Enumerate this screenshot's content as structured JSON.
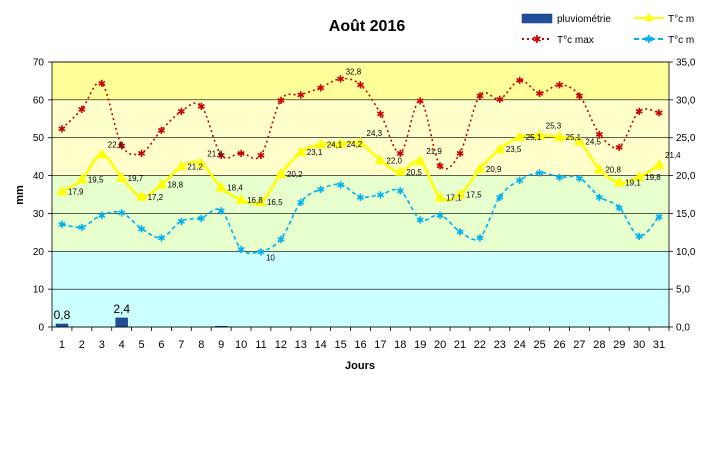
{
  "chart_data": {
    "type": "line",
    "title": "Août 2016",
    "xlabel": "Jours",
    "ylabel": "mm",
    "ylim_left": [
      0,
      70
    ],
    "ylim_right": [
      0,
      35
    ],
    "left_ticks": [
      "0",
      "10",
      "20",
      "30",
      "40",
      "50",
      "60",
      "70"
    ],
    "right_ticks": [
      "0,0",
      "5,0",
      "10,0",
      "15,0",
      "20,0",
      "25,0",
      "30,0",
      "35,0"
    ],
    "categories": [
      "1",
      "2",
      "3",
      "4",
      "5",
      "6",
      "7",
      "8",
      "9",
      "10",
      "11",
      "12",
      "13",
      "14",
      "15",
      "16",
      "17",
      "18",
      "19",
      "20",
      "21",
      "22",
      "23",
      "24",
      "25",
      "26",
      "27",
      "28",
      "29",
      "30",
      "31"
    ],
    "background_bands_right_axis": [
      {
        "from": 0,
        "to": 10,
        "color": "#ccffff"
      },
      {
        "from": 10,
        "to": 20,
        "color": "#e6ffcc"
      },
      {
        "from": 20,
        "to": 30,
        "color": "#ffffcc"
      },
      {
        "from": 30,
        "to": 35,
        "color": "#ffff99"
      }
    ],
    "grid": true,
    "legend_placement": "top-right",
    "series": [
      {
        "name": "pluviométrie",
        "type": "bar",
        "axis": "left",
        "color": "#1f4e9a",
        "values": [
          0.8,
          0,
          0,
          2.4,
          0,
          0,
          0,
          0,
          0.2,
          0,
          0,
          0,
          0,
          0,
          0,
          0,
          0,
          0,
          0,
          0,
          0,
          0,
          0,
          0,
          0,
          0,
          0,
          0,
          0,
          0,
          0
        ],
        "labels": {
          "0": "0,8",
          "3": "2,4"
        }
      },
      {
        "name": "T°c m",
        "type": "line",
        "axis": "right",
        "color": "#ffff00",
        "marker": "triangle",
        "values": [
          17.9,
          19.5,
          22.8,
          19.7,
          17.2,
          18.8,
          21.2,
          21.6,
          18.4,
          16.8,
          16.5,
          20.2,
          23.1,
          24.1,
          24.2,
          24.3,
          22.0,
          20.5,
          21.9,
          17.1,
          17.5,
          20.9,
          23.5,
          25.1,
          25.3,
          25.1,
          24.5,
          20.8,
          19.1,
          19.8,
          21.4
        ],
        "labels": [
          "17,9",
          "19,5",
          "22,8",
          "19,7",
          "17,2",
          "18,8",
          "21,2",
          "21,6",
          "18,4",
          "16,8",
          "16,5",
          "20,2",
          "23,1",
          "24,1",
          "24,2",
          "24,3",
          "22,0",
          "20,5",
          "21,9",
          "17,1",
          "17,5",
          "20,9",
          "23,5",
          "25,1",
          "25,3",
          "25,1",
          "24,5",
          "20,8",
          "19,1",
          "19,8",
          "21,4"
        ]
      },
      {
        "name": "T°c max",
        "type": "line",
        "axis": "right",
        "color": "#cc0000",
        "style": "dotted",
        "marker": "star",
        "values": [
          26.2,
          28.8,
          32.2,
          24.0,
          23.0,
          26.0,
          28.5,
          29.2,
          22.7,
          23.0,
          22.7,
          30.0,
          30.7,
          31.6,
          32.8,
          32.0,
          28.2,
          23.0,
          29.9,
          21.3,
          23.0,
          30.6,
          30.1,
          32.6,
          30.9,
          32.0,
          30.6,
          25.5,
          23.8,
          28.5,
          28.3
        ],
        "labels": {
          "14": "32,8"
        }
      },
      {
        "name": "T°c m",
        "type": "line",
        "axis": "right",
        "color": "#00b0f0",
        "style": "dashed",
        "marker": "star",
        "values": [
          13.6,
          13.2,
          14.8,
          15.1,
          13.0,
          11.8,
          14.0,
          14.4,
          15.4,
          10.3,
          10.0,
          11.6,
          16.5,
          18.2,
          18.8,
          17.2,
          17.5,
          18.0,
          14.2,
          14.8,
          12.6,
          11.8,
          17.2,
          19.4,
          20.4,
          19.8,
          19.7,
          17.2,
          15.8,
          12.0,
          14.6
        ],
        "labels": {
          "10": "10"
        }
      }
    ]
  }
}
